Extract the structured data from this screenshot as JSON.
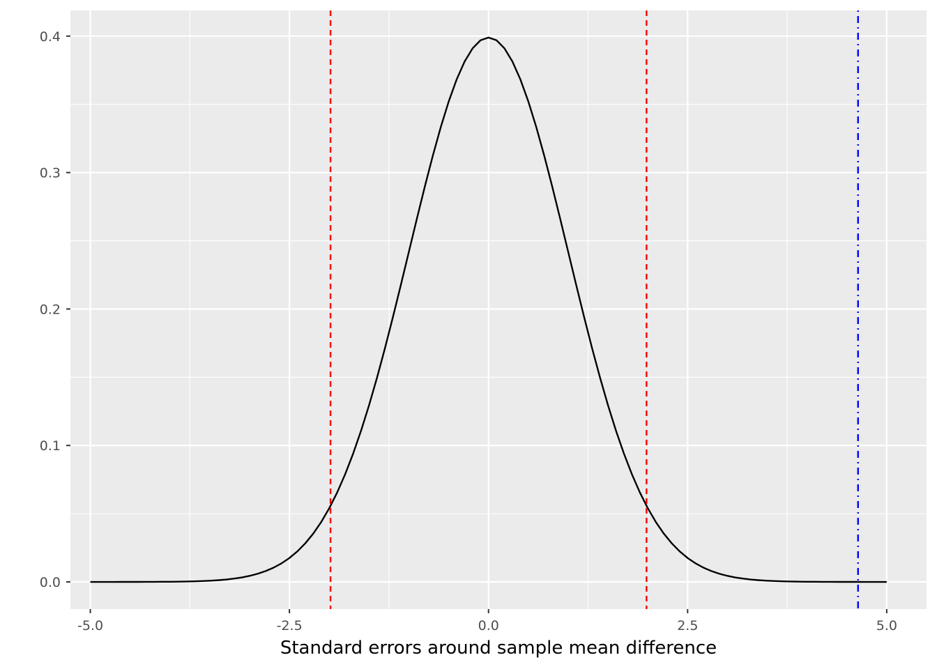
{
  "chart_data": {
    "type": "line",
    "title": "",
    "xlabel": "Standard errors around sample mean difference",
    "ylabel": "",
    "xlim": [
      -5.25,
      5.5
    ],
    "ylim": [
      -0.0199,
      0.4188
    ],
    "x_ticks": [
      {
        "value": -5.0,
        "label": "-5.0"
      },
      {
        "value": -2.5,
        "label": "-2.5"
      },
      {
        "value": 0.0,
        "label": "0.0"
      },
      {
        "value": 2.5,
        "label": "2.5"
      },
      {
        "value": 5.0,
        "label": "5.0"
      }
    ],
    "y_ticks": [
      {
        "value": 0.0,
        "label": "0.0"
      },
      {
        "value": 0.1,
        "label": "0.1"
      },
      {
        "value": 0.2,
        "label": "0.2"
      },
      {
        "value": 0.3,
        "label": "0.3"
      },
      {
        "value": 0.4,
        "label": "0.4"
      }
    ],
    "grid": true,
    "panel_background": "#ebebeb",
    "grid_color": "#ffffff",
    "curve": {
      "description": "standard normal density",
      "x_range": [
        -5,
        5
      ],
      "color": "#000000"
    },
    "vlines": [
      {
        "x": -1.984,
        "color": "#ff0000",
        "linetype": "dashed"
      },
      {
        "x": 1.984,
        "color": "#ff0000",
        "linetype": "dashed"
      },
      {
        "x": 4.64,
        "color": "#0000ff",
        "linetype": "dotdash"
      }
    ]
  }
}
